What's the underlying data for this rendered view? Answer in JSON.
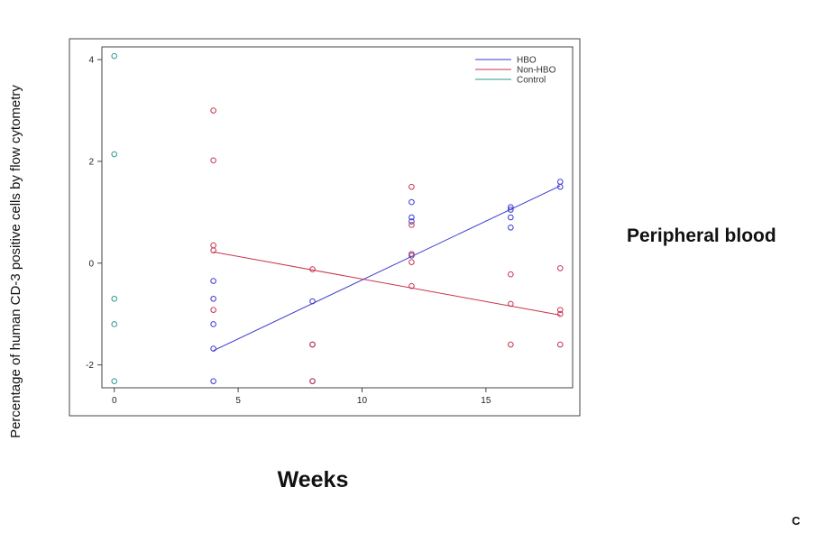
{
  "chart_data": {
    "type": "scatter",
    "title": "",
    "xlabel": "Weeks",
    "ylabel": "Percentage of human CD-3 positive cells by flow cytometry",
    "xlim": [
      -0.5,
      18.5
    ],
    "ylim": [
      -2.45,
      4.25
    ],
    "x_ticks": [
      0,
      5,
      10,
      15
    ],
    "y_ticks": [
      -2,
      0,
      2,
      4
    ],
    "grid": false,
    "legend_position": "top-right",
    "side_label": "Peripheral blood",
    "panel_letter": "C",
    "series": [
      {
        "name": "HBO",
        "color": "#3a3ad0",
        "points": [
          [
            4,
            -0.35
          ],
          [
            4,
            -0.7
          ],
          [
            4,
            -1.2
          ],
          [
            4,
            -1.68
          ],
          [
            4,
            -2.32
          ],
          [
            8,
            -0.75
          ],
          [
            8,
            -1.6
          ],
          [
            8,
            -2.32
          ],
          [
            12,
            1.2
          ],
          [
            12,
            0.9
          ],
          [
            12,
            0.82
          ],
          [
            12,
            0.15
          ],
          [
            16,
            1.1
          ],
          [
            16,
            1.05
          ],
          [
            16,
            0.9
          ],
          [
            16,
            0.7
          ],
          [
            18,
            1.6
          ],
          [
            18,
            1.5
          ]
        ],
        "fit": [
          [
            4,
            -1.72
          ],
          [
            18,
            1.52
          ]
        ]
      },
      {
        "name": "Non-HBO",
        "color": "#c8334d",
        "points": [
          [
            4,
            3.0
          ],
          [
            4,
            2.02
          ],
          [
            4,
            0.35
          ],
          [
            4,
            0.25
          ],
          [
            4,
            -0.92
          ],
          [
            8,
            -0.12
          ],
          [
            8,
            -1.6
          ],
          [
            8,
            -2.32
          ],
          [
            12,
            1.5
          ],
          [
            12,
            0.75
          ],
          [
            12,
            0.18
          ],
          [
            12,
            0.02
          ],
          [
            12,
            -0.45
          ],
          [
            16,
            -0.22
          ],
          [
            16,
            -0.8
          ],
          [
            16,
            -1.6
          ],
          [
            18,
            -0.1
          ],
          [
            18,
            -0.92
          ],
          [
            18,
            -1.0
          ],
          [
            18,
            -1.6
          ]
        ],
        "fit": [
          [
            4,
            0.22
          ],
          [
            18,
            -1.02
          ]
        ]
      },
      {
        "name": "Control",
        "color": "#2a9a90",
        "points": [
          [
            0,
            4.07
          ],
          [
            0,
            2.14
          ],
          [
            0,
            -0.7
          ],
          [
            0,
            -1.2
          ],
          [
            0,
            -2.32
          ]
        ]
      }
    ]
  }
}
